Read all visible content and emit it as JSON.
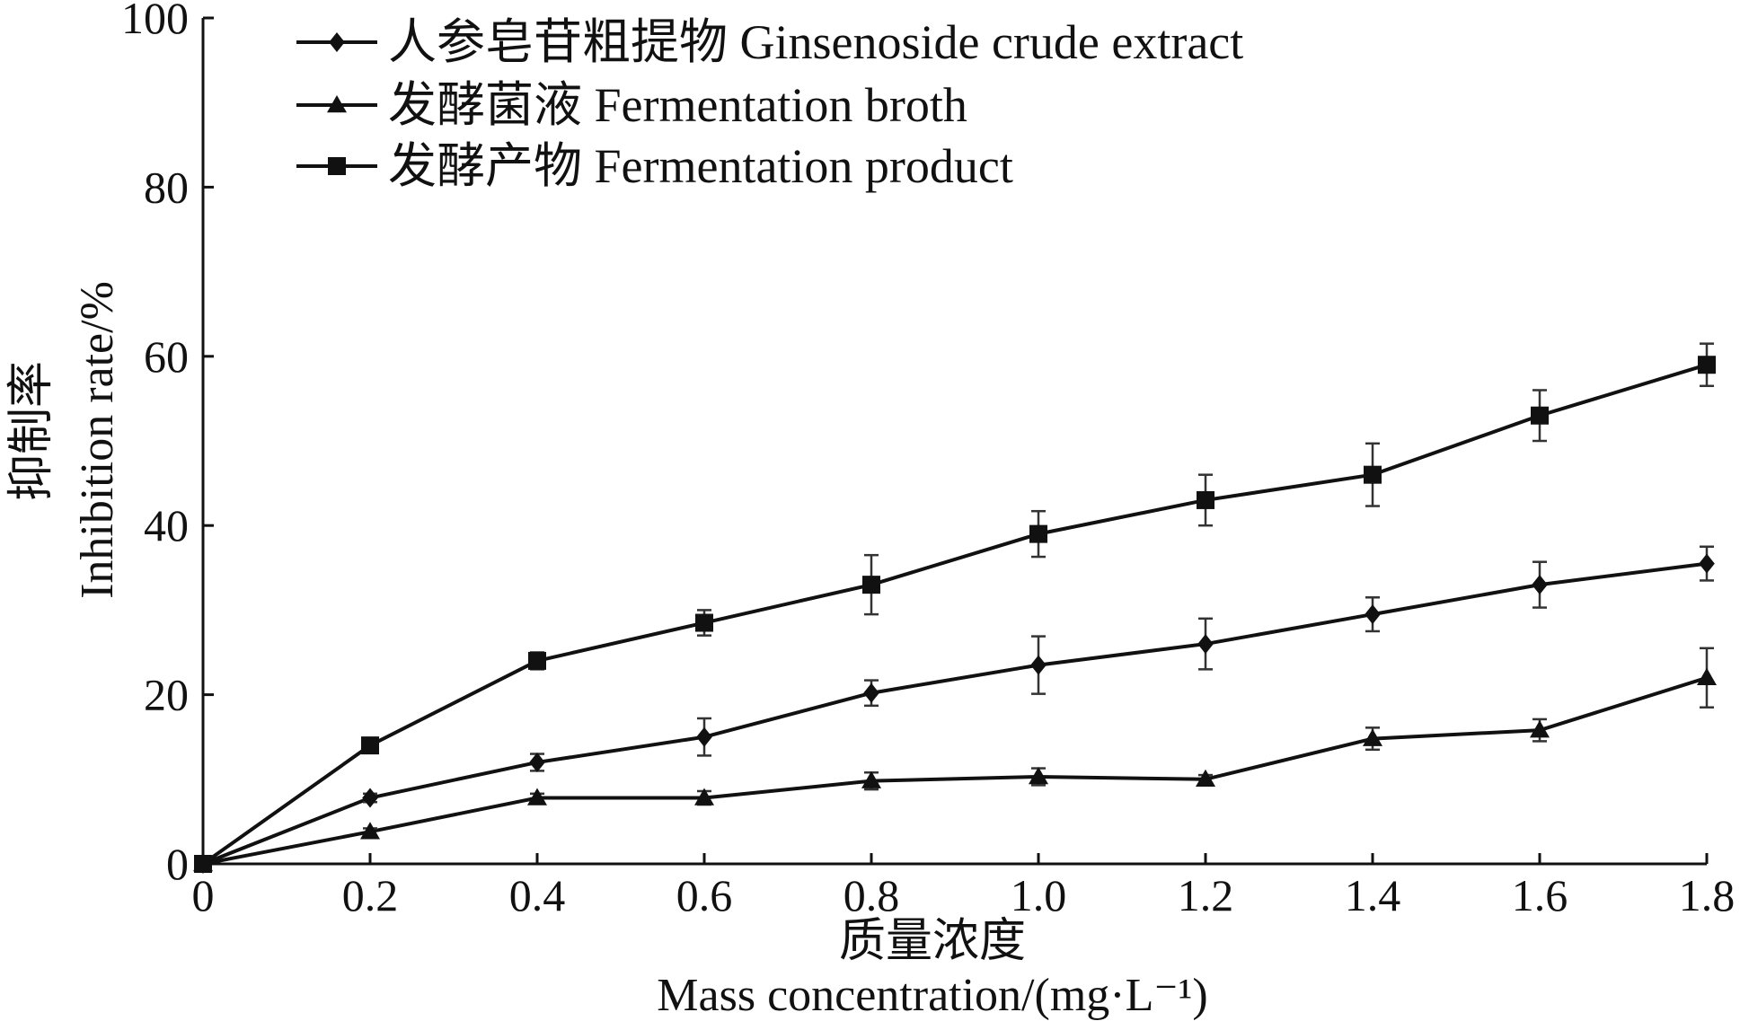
{
  "chart_data": {
    "type": "line",
    "x": [
      0,
      0.2,
      0.4,
      0.6,
      0.8,
      1.0,
      1.2,
      1.4,
      1.6,
      1.8
    ],
    "x_tick_labels": [
      "0",
      "0.2",
      "0.4",
      "0.6",
      "0.8",
      "1.0",
      "1.2",
      "1.4",
      "1.6",
      "1.8"
    ],
    "y_ticks": [
      0,
      20,
      40,
      60,
      80,
      100
    ],
    "y_tick_labels": [
      "0",
      "20",
      "40",
      "60",
      "80",
      "100"
    ],
    "xlim": [
      0,
      1.8
    ],
    "ylim": [
      0,
      100
    ],
    "xlabel_cn": "质量浓度",
    "xlabel_en": "Mass concentration/(mg·L⁻¹)",
    "ylabel_cn": "抑制率",
    "ylabel_en": "Inhibition rate/%",
    "legend_position": "top-left",
    "grid": false,
    "series": [
      {
        "name": "人参皂苷粗提物 Ginsenoside crude extract",
        "marker": "diamond",
        "color": "#111111",
        "values": [
          0,
          7.8,
          12,
          15,
          20.2,
          23.5,
          26,
          29.5,
          33,
          35.5
        ],
        "errors": [
          0,
          0.5,
          1.0,
          2.2,
          1.5,
          3.4,
          3.0,
          2.0,
          2.7,
          2.0
        ]
      },
      {
        "name": "发酵菌液 Fermentation broth",
        "marker": "triangle",
        "color": "#111111",
        "values": [
          0,
          3.8,
          7.8,
          7.8,
          9.8,
          10.3,
          10,
          14.8,
          15.8,
          22
        ],
        "errors": [
          0,
          0.4,
          0.5,
          0.8,
          1.0,
          1.0,
          0.5,
          1.3,
          1.3,
          3.5
        ]
      },
      {
        "name": "发酵产物 Fermentation product",
        "marker": "square",
        "color": "#111111",
        "values": [
          0,
          14,
          24,
          28.5,
          33,
          39,
          43,
          46,
          53,
          59
        ],
        "errors": [
          0,
          0.5,
          1.0,
          1.5,
          3.5,
          2.7,
          3.0,
          3.7,
          3.0,
          2.5
        ]
      }
    ]
  }
}
